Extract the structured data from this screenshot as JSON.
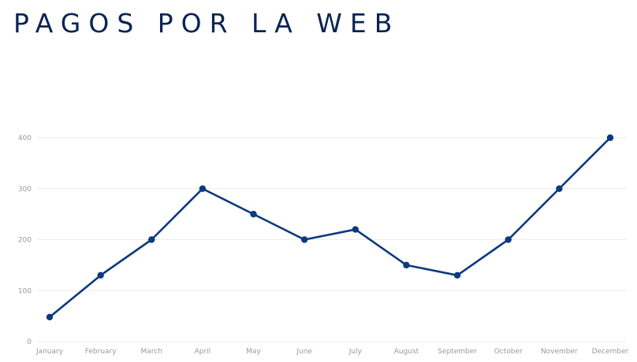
{
  "title": "PAGOS POR LA WEB",
  "colors": {
    "line": "#0b3a7e",
    "grid": "#ececec",
    "title": "#0b2454",
    "tick": "#9a9a9a"
  },
  "chart_data": {
    "type": "line",
    "title": "PAGOS POR LA WEB",
    "xlabel": "",
    "ylabel": "",
    "categories": [
      "January",
      "February",
      "March",
      "April",
      "May",
      "June",
      "July",
      "August",
      "September",
      "October",
      "November",
      "December"
    ],
    "series": [
      {
        "values": [
          48,
          130,
          200,
          300,
          250,
          200,
          220,
          150,
          130,
          200,
          300,
          400
        ]
      }
    ],
    "ylim": [
      0,
      400
    ],
    "yticks": [
      0,
      100,
      200,
      300,
      400
    ],
    "grid": true,
    "legend": "none"
  }
}
